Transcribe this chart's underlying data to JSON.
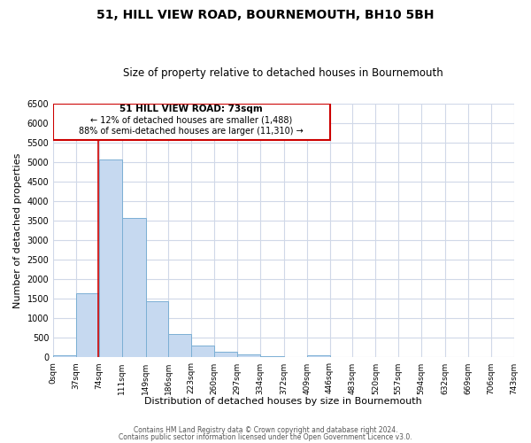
{
  "title": "51, HILL VIEW ROAD, BOURNEMOUTH, BH10 5BH",
  "subtitle": "Size of property relative to detached houses in Bournemouth",
  "xlabel": "Distribution of detached houses by size in Bournemouth",
  "ylabel": "Number of detached properties",
  "bin_edges": [
    0,
    37,
    74,
    111,
    149,
    186,
    223,
    260,
    297,
    334,
    372,
    409,
    446,
    483,
    520,
    557,
    594,
    632,
    669,
    706,
    743
  ],
  "bin_counts": [
    60,
    1650,
    5080,
    3580,
    1430,
    610,
    300,
    145,
    80,
    30,
    10,
    55,
    0,
    0,
    0,
    0,
    0,
    0,
    0,
    0
  ],
  "bar_color": "#c6d9f0",
  "bar_edge_color": "#7bafd4",
  "property_line_x": 73,
  "property_line_color": "#cc0000",
  "annotation_box_color": "#cc0000",
  "annotation_title": "51 HILL VIEW ROAD: 73sqm",
  "annotation_line1": "← 12% of detached houses are smaller (1,488)",
  "annotation_line2": "88% of semi-detached houses are larger (11,310) →",
  "ylim": [
    0,
    6500
  ],
  "yticks": [
    0,
    500,
    1000,
    1500,
    2000,
    2500,
    3000,
    3500,
    4000,
    4500,
    5000,
    5500,
    6000,
    6500
  ],
  "footer1": "Contains HM Land Registry data © Crown copyright and database right 2024.",
  "footer2": "Contains public sector information licensed under the Open Government Licence v3.0.",
  "background_color": "#ffffff",
  "grid_color": "#d0d8e8"
}
